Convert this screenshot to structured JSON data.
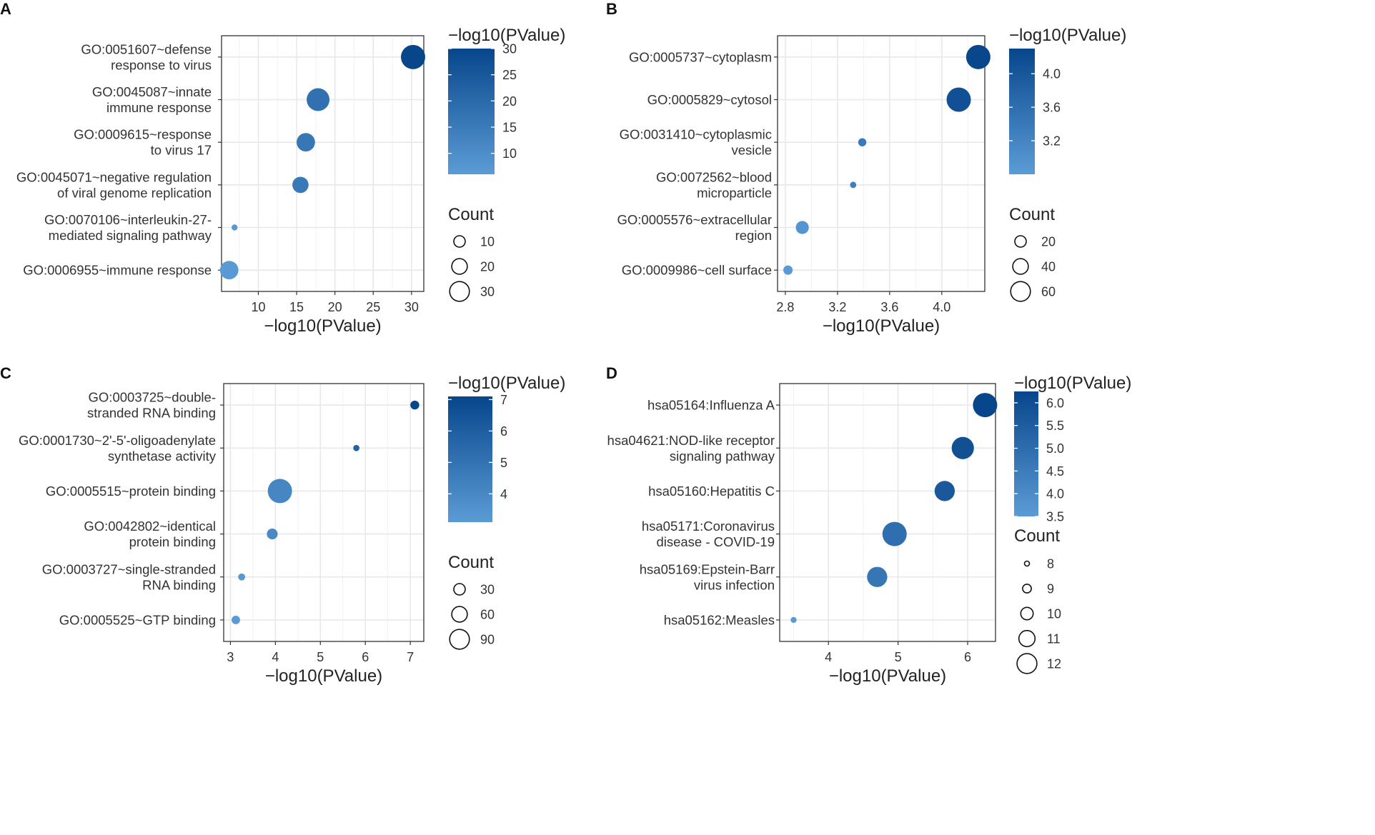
{
  "colors": {
    "low": "#5b9bd5",
    "high": "#08468c",
    "grid": "#e8e8e8",
    "axis": "#333333",
    "ticktext": "#4d4d4d"
  },
  "chart_data": [
    {
      "panel": "A",
      "type": "scatter",
      "xlabel": "−log10(PValue)",
      "xlim": [
        5.2,
        31.6
      ],
      "xticks": [
        10,
        15,
        20,
        25,
        30
      ],
      "categories": [
        {
          "text": "GO:0051607~defense\nresponse to virus",
          "x": 30.2,
          "count": 30
        },
        {
          "text": "GO:0045087~innate\nimmune response",
          "x": 17.8,
          "count": 28
        },
        {
          "text": "GO:0009615~response\nto virus   17",
          "x": 16.2,
          "count": 22
        },
        {
          "text": "GO:0045071~negative regulation\nof viral genome replication",
          "x": 15.5,
          "count": 19
        },
        {
          "text": "GO:0070106~interleukin-27-\nmediated signaling pathway",
          "x": 6.9,
          "count": 5
        },
        {
          "text": "GO:0006955~immune response",
          "x": 6.2,
          "count": 22
        }
      ],
      "color_legend": {
        "title": "−log10(PValue)",
        "range": [
          6,
          30
        ],
        "ticks": [
          10,
          15,
          20,
          25,
          30
        ]
      },
      "size_legend": {
        "title": "Count",
        "values": [
          10,
          20,
          30
        ],
        "range": [
          5,
          30
        ]
      }
    },
    {
      "panel": "B",
      "type": "scatter",
      "xlabel": "−log10(PValue)",
      "xlim": [
        2.74,
        4.33
      ],
      "xticks": [
        2.8,
        3.2,
        3.6,
        4.0
      ],
      "xtick_labels": [
        "2.8",
        "3.2",
        "3.6",
        "4.0"
      ],
      "categories": [
        {
          "text": "GO:0005737~cytoplasm",
          "x": 4.28,
          "count": 65
        },
        {
          "text": "GO:0005829~cytosol",
          "x": 4.13,
          "count": 65
        },
        {
          "text": "GO:0031410~cytoplasmic\nvesicle",
          "x": 3.39,
          "count": 12
        },
        {
          "text": "GO:0072562~blood\nmicroparticle",
          "x": 3.32,
          "count": 6
        },
        {
          "text": "GO:0005576~extracellular\nregion",
          "x": 2.93,
          "count": 28
        },
        {
          "text": "GO:0009986~cell surface",
          "x": 2.82,
          "count": 16
        }
      ],
      "color_legend": {
        "title": "−log10(PValue)",
        "range": [
          2.8,
          4.3
        ],
        "ticks": [
          3.2,
          3.6,
          4.0
        ],
        "tick_labels": [
          "3.2",
          "3.6",
          "4.0"
        ]
      },
      "size_legend": {
        "title": "Count",
        "values": [
          20,
          40,
          60
        ],
        "range": [
          5,
          65
        ]
      }
    },
    {
      "panel": "C",
      "type": "scatter",
      "xlabel": "−log10(PValue)",
      "xlim": [
        2.85,
        7.3
      ],
      "xticks": [
        3,
        4,
        5,
        6,
        7
      ],
      "categories": [
        {
          "text": "GO:0003725~double-\nstranded RNA binding",
          "x": 7.1,
          "count": 20
        },
        {
          "text": "GO:0001730~2'-5'-oligoadenylate\nsynthetase activity",
          "x": 5.8,
          "count": 6
        },
        {
          "text": "GO:0005515~protein binding",
          "x": 4.1,
          "count": 100
        },
        {
          "text": "GO:0042802~identical\nprotein binding",
          "x": 3.93,
          "count": 30
        },
        {
          "text": "GO:0003727~single-stranded\nRNA binding",
          "x": 3.25,
          "count": 10
        },
        {
          "text": "GO:0005525~GTP binding",
          "x": 3.12,
          "count": 18
        }
      ],
      "color_legend": {
        "title": "−log10(PValue)",
        "range": [
          3.1,
          7.1
        ],
        "ticks": [
          4,
          5,
          6,
          7
        ]
      },
      "size_legend": {
        "title": "Count",
        "values": [
          30,
          60,
          90
        ],
        "range": [
          5,
          100
        ]
      }
    },
    {
      "panel": "D",
      "type": "scatter",
      "xlabel": "−log10(PValue)",
      "xlim": [
        3.3,
        6.4
      ],
      "xticks": [
        4,
        5,
        6
      ],
      "categories": [
        {
          "text": "hsa05164:Influenza A",
          "x": 6.25,
          "count": 12
        },
        {
          "text": "hsa04621:NOD-like receptor\nsignaling pathway",
          "x": 5.93,
          "count": 11.5
        },
        {
          "text": "hsa05160:Hepatitis C",
          "x": 5.67,
          "count": 11
        },
        {
          "text": "hsa05171:Coronavirus\ndisease - COVID-19",
          "x": 4.95,
          "count": 12
        },
        {
          "text": "hsa05169:Epstein-Barr\nvirus infection",
          "x": 4.7,
          "count": 11
        },
        {
          "text": "hsa05162:Measles",
          "x": 3.5,
          "count": 7.5
        }
      ],
      "color_legend": {
        "title": "−log10(PValue)",
        "range": [
          3.5,
          6.25
        ],
        "ticks": [
          3.5,
          4.0,
          4.5,
          5.0,
          5.5,
          6.0
        ],
        "tick_labels": [
          "3.5",
          "4.0",
          "4.5",
          "5.0",
          "5.5",
          "6.0"
        ]
      },
      "size_legend": {
        "title": "Count",
        "values": [
          8,
          9,
          10,
          11,
          12
        ],
        "range": [
          7.5,
          12
        ]
      }
    }
  ]
}
